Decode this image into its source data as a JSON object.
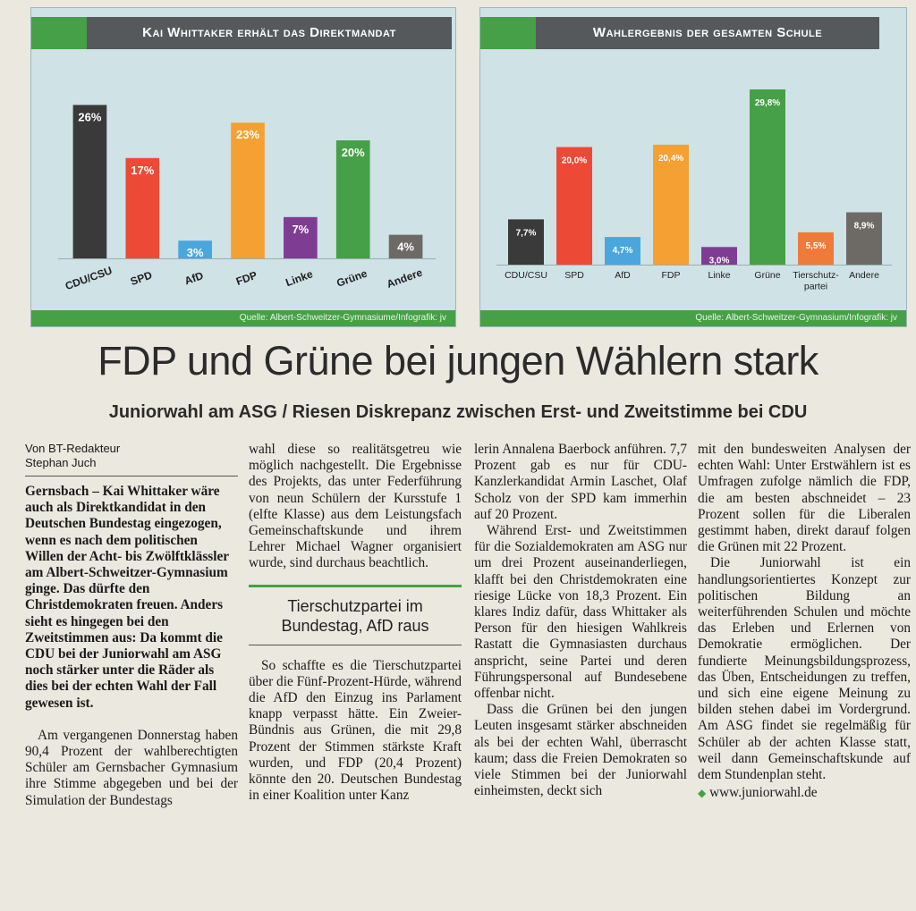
{
  "charts": [
    {
      "title": "Kai Whittaker erhält das Direktmandat",
      "source": "Quelle: Albert-Schweitzer-Gymnasiume/Infografik: jv",
      "chart_data": {
        "type": "bar",
        "title": "Kai Whittaker erhält das Direktmandat",
        "categories": [
          "CDU/CSU",
          "SPD",
          "AfD",
          "FDP",
          "Linke",
          "Grüne",
          "Andere"
        ],
        "values": [
          26,
          17,
          3,
          23,
          7,
          20,
          4
        ],
        "value_labels": [
          "26%",
          "17%",
          "3%",
          "23%",
          "7%",
          "20%",
          "4%"
        ],
        "colors": [
          "#3a3a3a",
          "#ec4a36",
          "#4aa6dd",
          "#f4a032",
          "#7e3d92",
          "#45a047",
          "#6d6a66"
        ],
        "ylim": [
          0,
          30
        ],
        "grid": false,
        "tick_rotation": -20
      }
    },
    {
      "title": "Wahlergebnis der gesamten Schule",
      "source": "Quelle: Albert-Schweitzer-Gymnasium/Infografik: jv",
      "chart_data": {
        "type": "bar",
        "title": "Wahlergebnis der gesamten Schule",
        "categories": [
          "CDU/CSU",
          "SPD",
          "AfD",
          "FDP",
          "Linke",
          "Grüne",
          "Tierschutzpartei",
          "Andere"
        ],
        "category_lines": [
          [
            "CDU/CSU"
          ],
          [
            "SPD"
          ],
          [
            "AfD"
          ],
          [
            "FDP"
          ],
          [
            "Linke"
          ],
          [
            "Grüne"
          ],
          [
            "Tierschutz-",
            "partei"
          ],
          [
            "Andere"
          ]
        ],
        "values": [
          7.7,
          20.0,
          4.7,
          20.4,
          3.0,
          29.8,
          5.5,
          8.9
        ],
        "value_labels": [
          "7,7%",
          "20,0%",
          "4,7%",
          "20,4%",
          "3,0%",
          "29,8%",
          "5,5%",
          "8,9%"
        ],
        "colors": [
          "#3a3a3a",
          "#ec4a36",
          "#4aa6dd",
          "#f4a032",
          "#7e3d92",
          "#45a047",
          "#f07a3a",
          "#6d6a66"
        ],
        "ylim": [
          0,
          33
        ],
        "grid": false,
        "tick_rotation": 0
      }
    }
  ],
  "article": {
    "headline": "FDP und Grüne bei jungen Wählern stark",
    "subhead": "Juniorwahl am ASG / Riesen Diskrepanz zwischen Erst- und Zweitstimme bei CDU",
    "byline_1": "Von BT-Redakteur",
    "byline_2": "Stephan Juch",
    "lead": "Gernsbach – Kai Whittaker wäre auch als Direktkandidat in den Deutschen Bundestag eingezogen, wenn es nach dem politischen Willen der Acht- bis Zwölftklässler am Albert-Schweitzer-Gymnasium ginge. Das dürfte den Christdemokraten freuen. Anders sieht es hingegen bei den Zweitstimmen aus: Da kommt die CDU bei der Juniorwahl am ASG noch stärker unter die Räder als dies bei der echten Wahl der Fall gewesen ist.",
    "p1": "Am vergangenen Donnerstag haben 90,4 Prozent der wahlberechtigten Schüler am Gernsbacher Gymnasium ihre Stimme abgegeben und bei der Simulation der Bundestagswahl diese so realitätsgetreu wie möglich nachgestellt. Die Ergebnisse des Projekts, das unter Federführung von neun Schülern der Kursstufe 1 (elfte Klasse) aus dem Leistungsfach Gemeinschaftskunde und ihrem Lehrer Michael Wagner organisiert wurde, sind durchaus beachtlich.",
    "interhead": "Tierschutzpartei im Bundestag, AfD raus",
    "p2": "So schaffte es die Tierschutzpartei über die Fünf-Prozent-Hürde, während die AfD den Einzug ins Parlament knapp verpasst hätte. Ein Zweier-Bündnis aus Grünen, die mit 29,8 Prozent der Stimmen stärkste Kraft wurden, und FDP (20,4 Prozent) könnte den 20. Deutschen Bundestag in einer Koalition unter Kanzlerin Annalena Baerbock anführen. 7,7 Prozent gab es nur für CDU-Kanzlerkandidat Armin Laschet, Olaf Scholz von der SPD kam immerhin auf 20 Prozent.",
    "p3": "Während Erst- und Zweitstimmen für die Sozialdemokraten am ASG nur um drei Prozent auseinanderliegen, klafft bei den Christdemokraten eine riesige Lücke von 18,3 Prozent. Ein klares Indiz dafür, dass Whittaker als Person für den hiesigen Wahlkreis Rastatt die Gymnasiasten durchaus anspricht, seine Partei und deren Führungspersonal auf Bundesebene offenbar nicht.",
    "p4": "Dass die Grünen bei den jungen Leuten insgesamt stärker abschneiden als bei der echten Wahl, überrascht kaum; dass die Freien Demokraten so viele Stimmen bei der Juniorwahl einheimsten, deckt sich mit den bundesweiten Analysen der echten Wahl: Unter Erstwählern ist es Umfragen zufolge nämlich die FDP, die am besten abschneidet – 23 Prozent sollen für die Liberalen gestimmt haben, direkt darauf folgen die Grünen mit 22 Prozent.",
    "p5": "Die Juniorwahl ist ein handlungsorientiertes Konzept zur politischen Bildung an weiterführenden Schulen und möchte das Erleben und Erlernen von Demokratie ermöglichen. Der fundierte Meinungsbildungsprozess, das Üben, Entscheidungen zu treffen, und sich eine eigene Meinung zu bilden stehen dabei im Vordergrund. Am ASG findet sie regelmäßig für Schüler ab der achten Klasse statt, weil dann Gemeinschaftskunde auf dem Stundenplan steht.",
    "link": "www.juniorwahl.de"
  }
}
